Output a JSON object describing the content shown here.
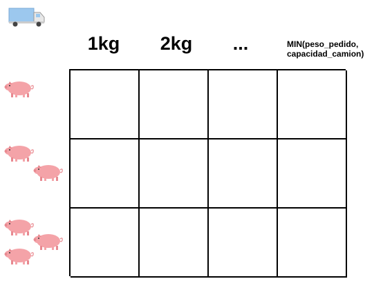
{
  "header": {
    "col1": "1kg",
    "col2": "2kg",
    "col3": "...",
    "col4_line1": "MIN(peso_pedido,",
    "col4_line2": "capacidad_camion)"
  },
  "icons": {
    "truck": "truck-icon",
    "pig": "pig-icon"
  },
  "rows": [
    {
      "pig_count": 1
    },
    {
      "pig_count": 2
    },
    {
      "pig_count": 3
    }
  ],
  "colors": {
    "pig_body": "#f4a3a8",
    "pig_shade": "#e88990",
    "truck_cargo": "#9cc8ee",
    "truck_cab": "#e8e8e8"
  }
}
